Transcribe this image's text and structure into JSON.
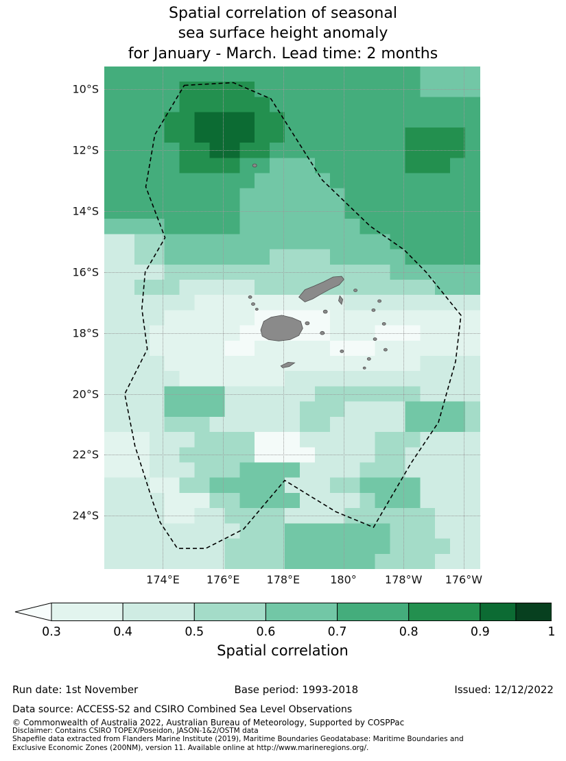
{
  "title": {
    "line1": "Spatial correlation of seasonal",
    "line2": "sea surface height anomaly",
    "line3": "for January - March. Lead time: 2 months"
  },
  "map": {
    "x_ticks": [
      {
        "label": "174°E",
        "lon": 174
      },
      {
        "label": "176°E",
        "lon": 176
      },
      {
        "label": "178°E",
        "lon": 178
      },
      {
        "label": "180°",
        "lon": 180
      },
      {
        "label": "178°W",
        "lon": 182
      },
      {
        "label": "176°W",
        "lon": 184
      }
    ],
    "y_ticks": [
      {
        "label": "10°S",
        "lat": 10
      },
      {
        "label": "12°S",
        "lat": 12
      },
      {
        "label": "14°S",
        "lat": 14
      },
      {
        "label": "16°S",
        "lat": 16
      },
      {
        "label": "18°S",
        "lat": 18
      },
      {
        "label": "20°S",
        "lat": 20
      },
      {
        "label": "22°S",
        "lat": 22
      },
      {
        "label": "24°S",
        "lat": 24
      }
    ]
  },
  "chart_data": {
    "type": "heatmap",
    "title": "Spatial correlation of seasonal sea surface height anomaly for January - March. Lead time: 2 months",
    "season": "January - March",
    "lead_time_months": 2,
    "xlabel": "",
    "ylabel": "",
    "x_tick_labels": [
      "174°E",
      "176°E",
      "178°E",
      "180°",
      "178°W",
      "176°W"
    ],
    "y_tick_labels": [
      "10°S",
      "12°S",
      "14°S",
      "16°S",
      "18°S",
      "20°S",
      "22°S",
      "24°S"
    ],
    "extent": {
      "lon_min": 172.05,
      "lon_max": 184.55,
      "lat_min": 9.25,
      "lat_max": 25.75
    },
    "grid": {
      "note": "each digit is a correlation bin index per 0.5 deg cell, rows north to south",
      "ncols": 25,
      "nrows": 33,
      "cell_deg": 0.5,
      "bins": [
        "<0.3",
        "0.3-0.4",
        "0.4-0.5",
        "0.5-0.6",
        "0.6-0.7",
        "0.7-0.8",
        "0.8-0.9",
        "0.9-1.0"
      ],
      "colors": [
        "#f4fbf9",
        "#e2f4ee",
        "#cfece3",
        "#a4dcc8",
        "#72c7a6",
        "#44ad7c",
        "#23904f",
        "#0c6b33"
      ],
      "rows": [
        "5555555555555555555554444",
        "5555566666555555555554444",
        "5555566666655555555555555",
        "5555667777665555555555555",
        "5555667777665555555566665",
        "5555566776655555555566665",
        "5555566665544455555566655",
        "5555555555444445555555555",
        "5555555554444444555555555",
        "5555555554444444555555555",
        "4444555554444444455555555",
        "2233444444444444444555555",
        "2233444444433334444455555",
        "2222333333333333333444444",
        "2233322222333333333333444",
        "2222221111111111222222222",
        "2222111111000001111111111",
        "2221111110000001110001111",
        "2221111100111110001111111",
        "2222111111111111111112222",
        "2222211111112222222222222",
        "2222444422222233333332222",
        "2222444422222333222244443",
        "2222333222222332222244443",
        "1112223333000222223332222",
        "1112233333000022223322222",
        "1112223334444222233322222",
        "2221133444442223344442222",
        "2222111334444222234442222",
        "2222112233332222333333222",
        "2222222223334444444333222",
        "2222222233334444444333322",
        "2222222233334444443333222"
      ]
    },
    "colorbar": {
      "label": "Spatial correlation",
      "tick_labels": [
        "0.3",
        "0.4",
        "0.5",
        "0.6",
        "0.7",
        "0.8",
        "0.9",
        "1"
      ],
      "under_color": "#f8fdfc",
      "segment_colors": [
        "#e2f4ee",
        "#cfece3",
        "#a4dcc8",
        "#72c7a6",
        "#44ad7c",
        "#23904f",
        "#0c6b33"
      ],
      "end_color": "#07401f"
    },
    "eez_boundary": [
      [
        174.71,
        9.87
      ],
      [
        176.34,
        9.78
      ],
      [
        177.59,
        10.31
      ],
      [
        179.3,
        12.98
      ],
      [
        180.89,
        14.49
      ],
      [
        182.02,
        15.27
      ],
      [
        182.75,
        16.0
      ],
      [
        183.91,
        17.42
      ],
      [
        183.73,
        18.93
      ],
      [
        183.16,
        20.93
      ],
      [
        182.25,
        22.27
      ],
      [
        181.0,
        24.38
      ],
      [
        179.75,
        23.87
      ],
      [
        178.05,
        22.84
      ],
      [
        176.68,
        24.44
      ],
      [
        175.43,
        25.07
      ],
      [
        174.48,
        25.07
      ],
      [
        173.91,
        24.22
      ],
      [
        173.66,
        23.53
      ],
      [
        173.07,
        21.71
      ],
      [
        172.73,
        20.0
      ],
      [
        173.48,
        18.53
      ],
      [
        173.3,
        17.2
      ],
      [
        173.41,
        16.0
      ],
      [
        174.07,
        14.87
      ],
      [
        173.43,
        13.2
      ],
      [
        173.73,
        11.49
      ]
    ],
    "islands": {
      "polygons": [
        {
          "name": "viti-levu",
          "points": [
            [
              177.3,
              18.1
            ],
            [
              177.25,
              17.9
            ],
            [
              177.35,
              17.62
            ],
            [
              177.6,
              17.48
            ],
            [
              177.95,
              17.42
            ],
            [
              178.3,
              17.5
            ],
            [
              178.58,
              17.62
            ],
            [
              178.65,
              17.85
            ],
            [
              178.52,
              18.08
            ],
            [
              178.22,
              18.22
            ],
            [
              177.85,
              18.26
            ],
            [
              177.52,
              18.22
            ]
          ]
        },
        {
          "name": "vanua-levu",
          "points": [
            [
              178.52,
              16.82
            ],
            [
              178.72,
              16.58
            ],
            [
              179.02,
              16.46
            ],
            [
              179.34,
              16.32
            ],
            [
              179.66,
              16.16
            ],
            [
              179.94,
              16.14
            ],
            [
              180.02,
              16.24
            ],
            [
              179.86,
              16.42
            ],
            [
              179.56,
              16.56
            ],
            [
              179.26,
              16.72
            ],
            [
              178.98,
              16.88
            ],
            [
              178.72,
              16.98
            ]
          ]
        },
        {
          "name": "taveuni",
          "points": [
            [
              179.88,
              16.78
            ],
            [
              179.98,
              16.9
            ],
            [
              179.94,
              17.06
            ],
            [
              179.84,
              16.94
            ]
          ]
        },
        {
          "name": "kadavu",
          "points": [
            [
              177.92,
              19.08
            ],
            [
              178.16,
              18.96
            ],
            [
              178.38,
              18.98
            ],
            [
              178.2,
              19.1
            ],
            [
              177.98,
              19.14
            ]
          ]
        }
      ],
      "islets": [
        {
          "lon": 177.05,
          "lat": 12.5,
          "r": 3
        },
        {
          "lon": 177.0,
          "lat": 17.05,
          "r": 2.5
        },
        {
          "lon": 176.9,
          "lat": 16.82,
          "r": 2.5
        },
        {
          "lon": 177.12,
          "lat": 17.22,
          "r": 2
        },
        {
          "lon": 178.8,
          "lat": 17.68,
          "r": 3
        },
        {
          "lon": 179.3,
          "lat": 18.0,
          "r": 3
        },
        {
          "lon": 179.4,
          "lat": 17.3,
          "r": 3
        },
        {
          "lon": 180.4,
          "lat": 16.6,
          "r": 2.5
        },
        {
          "lon": 181.0,
          "lat": 17.25,
          "r": 2.5
        },
        {
          "lon": 181.35,
          "lat": 17.7,
          "r": 2.5
        },
        {
          "lon": 181.05,
          "lat": 18.2,
          "r": 2.5
        },
        {
          "lon": 181.4,
          "lat": 18.55,
          "r": 2.5
        },
        {
          "lon": 180.85,
          "lat": 18.85,
          "r": 2.5
        },
        {
          "lon": 181.2,
          "lat": 16.95,
          "r": 2.5
        },
        {
          "lon": 180.7,
          "lat": 19.15,
          "r": 2
        },
        {
          "lon": 179.95,
          "lat": 18.6,
          "r": 2.5
        }
      ]
    }
  },
  "footer": {
    "run_date": "Run date: 1st November",
    "base_period": "Base period: 1993-2018",
    "issued": "Issued: 12/12/2022",
    "data_source": "Data source: ACCESS-S2 and CSIRO Combined Sea Level Observations",
    "copyright": "© Commonwealth of Australia 2022, Australian Bureau of Meteorology, Supported by COSPPac",
    "disclaimer": "Disclaimer: Contains CSIRO TOPEX/Poseidon, JASON-1&2/OSTM data",
    "shapefile_line1": "Shapefile data extracted from Flanders Marine Institute (2019), Maritime Boundaries Geodatabase: Maritime Boundaries and",
    "shapefile_line2": "Exclusive Economic Zones (200NM), version 11. Available online at http://www.marineregions.org/."
  }
}
